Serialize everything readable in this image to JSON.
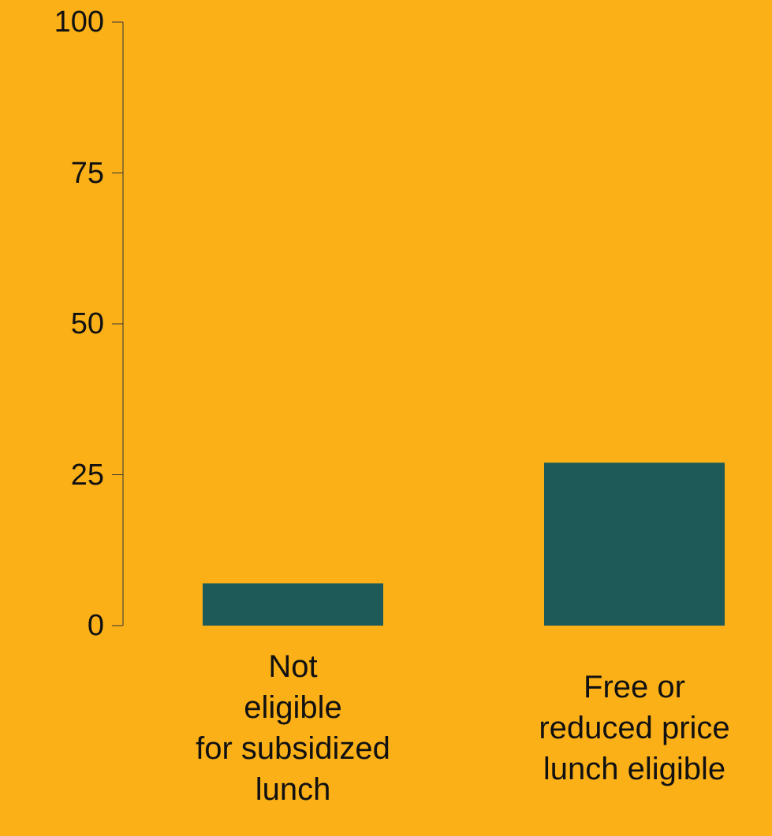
{
  "colors": {
    "background": "#FBB018",
    "bar": "#1E5B58",
    "axis": "#333333",
    "text": "#111111"
  },
  "chart_data": {
    "type": "bar",
    "categories": [
      [
        "Not",
        "eligible",
        "for subsidized",
        "lunch"
      ],
      [
        "Free or",
        "reduced price",
        "lunch eligible"
      ]
    ],
    "values": [
      7,
      27
    ],
    "yticks": [
      "0",
      "25",
      "50",
      "75",
      "100"
    ],
    "ylim": [
      0,
      100
    ],
    "title": "",
    "xlabel": "",
    "ylabel": "",
    "grid": false
  }
}
